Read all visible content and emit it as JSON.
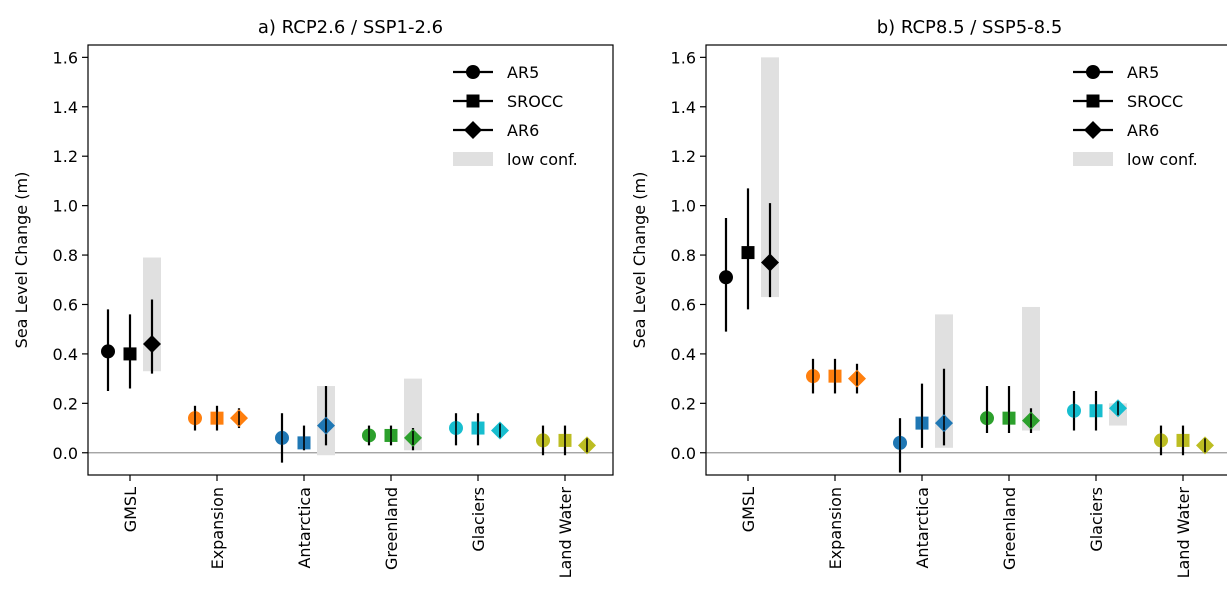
{
  "colors": {
    "GMSL": "#000000",
    "Expansion": "#ff7f0e",
    "Antarctica": "#1f77b4",
    "Greenland": "#2ca02c",
    "Glaciers": "#17becf",
    "Land Water": "#bcbd22",
    "lowconf": "#e0e0e0",
    "zeroline": "#999999"
  },
  "chart_data": [
    {
      "type": "scatter",
      "title": "a) RCP2.6 / SSP1-2.6",
      "xlabel": "",
      "ylabel": "Sea Level Change (m)",
      "ylim": [
        -0.09,
        1.65
      ],
      "yticks": [
        "0.0",
        "0.2",
        "0.4",
        "0.6",
        "0.8",
        "1.0",
        "1.2",
        "1.4",
        "1.6"
      ],
      "categories": [
        "GMSL",
        "Expansion",
        "Antarctica",
        "Greenland",
        "Glaciers",
        "Land Water"
      ],
      "legend": {
        "placement": "top-right",
        "entries": [
          {
            "label": "AR5",
            "marker": "circle"
          },
          {
            "label": "SROCC",
            "marker": "square"
          },
          {
            "label": "AR6",
            "marker": "diamond"
          },
          {
            "label": "low conf.",
            "marker": "patch"
          }
        ]
      },
      "series": [
        {
          "name": "AR5",
          "marker": "circle",
          "values": [
            0.41,
            0.14,
            0.06,
            0.07,
            0.1,
            0.05
          ],
          "low": [
            0.25,
            0.09,
            -0.04,
            0.03,
            0.03,
            -0.01
          ],
          "high": [
            0.58,
            0.19,
            0.16,
            0.11,
            0.16,
            0.11
          ]
        },
        {
          "name": "SROCC",
          "marker": "square",
          "values": [
            0.4,
            0.14,
            0.04,
            0.07,
            0.1,
            0.05
          ],
          "low": [
            0.26,
            0.09,
            0.01,
            0.03,
            0.03,
            -0.01
          ],
          "high": [
            0.56,
            0.19,
            0.11,
            0.11,
            0.16,
            0.11
          ]
        },
        {
          "name": "AR6",
          "marker": "diamond",
          "values": [
            0.44,
            0.14,
            0.11,
            0.06,
            0.09,
            0.03
          ],
          "low": [
            0.32,
            0.1,
            0.03,
            0.01,
            0.06,
            0.01
          ],
          "high": [
            0.62,
            0.18,
            0.27,
            0.1,
            0.11,
            0.04
          ]
        }
      ],
      "low_confidence": [
        {
          "category": "GMSL",
          "low": 0.33,
          "high": 0.79
        },
        {
          "category": "Antarctica",
          "low": -0.01,
          "high": 0.27
        },
        {
          "category": "Greenland",
          "low": 0.01,
          "high": 0.3
        }
      ]
    },
    {
      "type": "scatter",
      "title": "b) RCP8.5 / SSP5-8.5",
      "xlabel": "",
      "ylabel": "Sea Level Change (m)",
      "ylim": [
        -0.09,
        1.65
      ],
      "yticks": [
        "0.0",
        "0.2",
        "0.4",
        "0.6",
        "0.8",
        "1.0",
        "1.2",
        "1.4",
        "1.6"
      ],
      "categories": [
        "GMSL",
        "Expansion",
        "Antarctica",
        "Greenland",
        "Glaciers",
        "Land Water"
      ],
      "legend": {
        "placement": "top-right",
        "entries": [
          {
            "label": "AR5",
            "marker": "circle"
          },
          {
            "label": "SROCC",
            "marker": "square"
          },
          {
            "label": "AR6",
            "marker": "diamond"
          },
          {
            "label": "low conf.",
            "marker": "patch"
          }
        ]
      },
      "series": [
        {
          "name": "AR5",
          "marker": "circle",
          "values": [
            0.71,
            0.31,
            0.04,
            0.14,
            0.17,
            0.05
          ],
          "low": [
            0.49,
            0.24,
            -0.08,
            0.08,
            0.09,
            -0.01
          ],
          "high": [
            0.95,
            0.38,
            0.14,
            0.27,
            0.25,
            0.11
          ]
        },
        {
          "name": "SROCC",
          "marker": "square",
          "values": [
            0.81,
            0.31,
            0.12,
            0.14,
            0.17,
            0.05
          ],
          "low": [
            0.58,
            0.24,
            0.02,
            0.08,
            0.09,
            -0.01
          ],
          "high": [
            1.07,
            0.38,
            0.28,
            0.27,
            0.25,
            0.11
          ]
        },
        {
          "name": "AR6",
          "marker": "diamond",
          "values": [
            0.77,
            0.3,
            0.12,
            0.13,
            0.18,
            0.03
          ],
          "low": [
            0.63,
            0.24,
            0.03,
            0.08,
            0.15,
            0.01
          ],
          "high": [
            1.01,
            0.36,
            0.34,
            0.18,
            0.2,
            0.04
          ]
        }
      ],
      "low_confidence": [
        {
          "category": "GMSL",
          "low": 0.63,
          "high": 1.6
        },
        {
          "category": "Antarctica",
          "low": 0.02,
          "high": 0.56
        },
        {
          "category": "Greenland",
          "low": 0.09,
          "high": 0.59
        },
        {
          "category": "Glaciers",
          "low": 0.11,
          "high": 0.2
        }
      ]
    }
  ]
}
